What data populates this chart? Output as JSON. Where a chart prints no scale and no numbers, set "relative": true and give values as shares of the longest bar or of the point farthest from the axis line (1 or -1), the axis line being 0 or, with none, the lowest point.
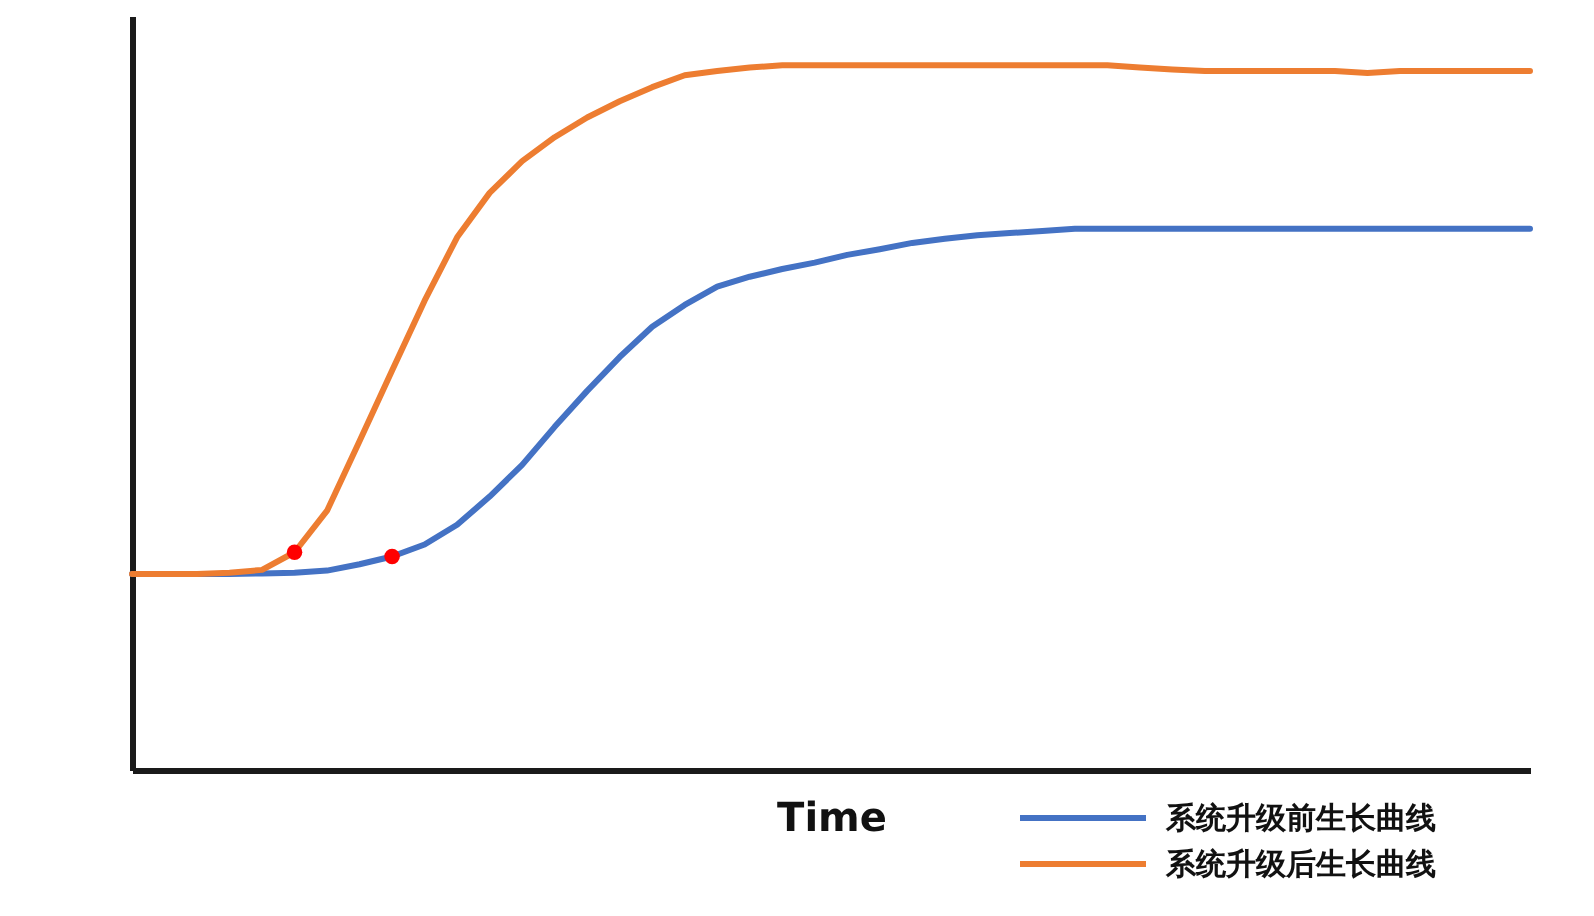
{
  "chart_data": {
    "type": "line",
    "xlabel": "Time",
    "relative": true,
    "legend": "bottom right",
    "line_style": "solid",
    "categories": [
      null,
      null,
      null,
      null,
      null,
      null,
      null,
      null,
      null,
      null,
      null,
      null,
      null,
      null,
      null,
      null,
      null,
      null,
      null,
      null,
      null,
      null,
      null,
      null,
      null,
      null,
      null,
      null,
      null,
      null,
      null,
      null,
      null,
      null,
      null,
      null,
      null,
      null,
      null,
      null,
      null,
      null,
      null,
      null
    ],
    "series": [
      {
        "name": "系统升级前生长曲线",
        "color": "#4472c4",
        "values": [
          0.278,
          0.278,
          0.278,
          0.278,
          0.279,
          0.28,
          0.283,
          0.292,
          0.303,
          0.32,
          0.348,
          0.388,
          0.433,
          0.487,
          0.538,
          0.586,
          0.629,
          0.66,
          0.686,
          0.7,
          0.711,
          0.72,
          0.731,
          0.739,
          0.748,
          0.754,
          0.759,
          0.762,
          0.765,
          0.768,
          0.768,
          0.768,
          0.768,
          0.768,
          0.768,
          0.768,
          0.768,
          0.768,
          0.768,
          0.768,
          0.768,
          0.768,
          0.768,
          0.768
        ]
      },
      {
        "name": "系统升级后生长曲线",
        "color": "#ed7d31",
        "values": [
          0.278,
          0.278,
          0.278,
          0.28,
          0.284,
          0.309,
          0.368,
          0.467,
          0.567,
          0.666,
          0.756,
          0.819,
          0.864,
          0.898,
          0.926,
          0.949,
          0.969,
          0.986,
          0.992,
          0.997,
          1,
          1,
          1,
          1,
          1,
          1,
          1,
          1,
          1,
          1,
          1,
          0.997,
          0.994,
          0.992,
          0.992,
          0.992,
          0.992,
          0.992,
          0.989,
          0.992,
          0.992,
          0.992,
          0.992,
          0.992
        ]
      }
    ]
  }
}
